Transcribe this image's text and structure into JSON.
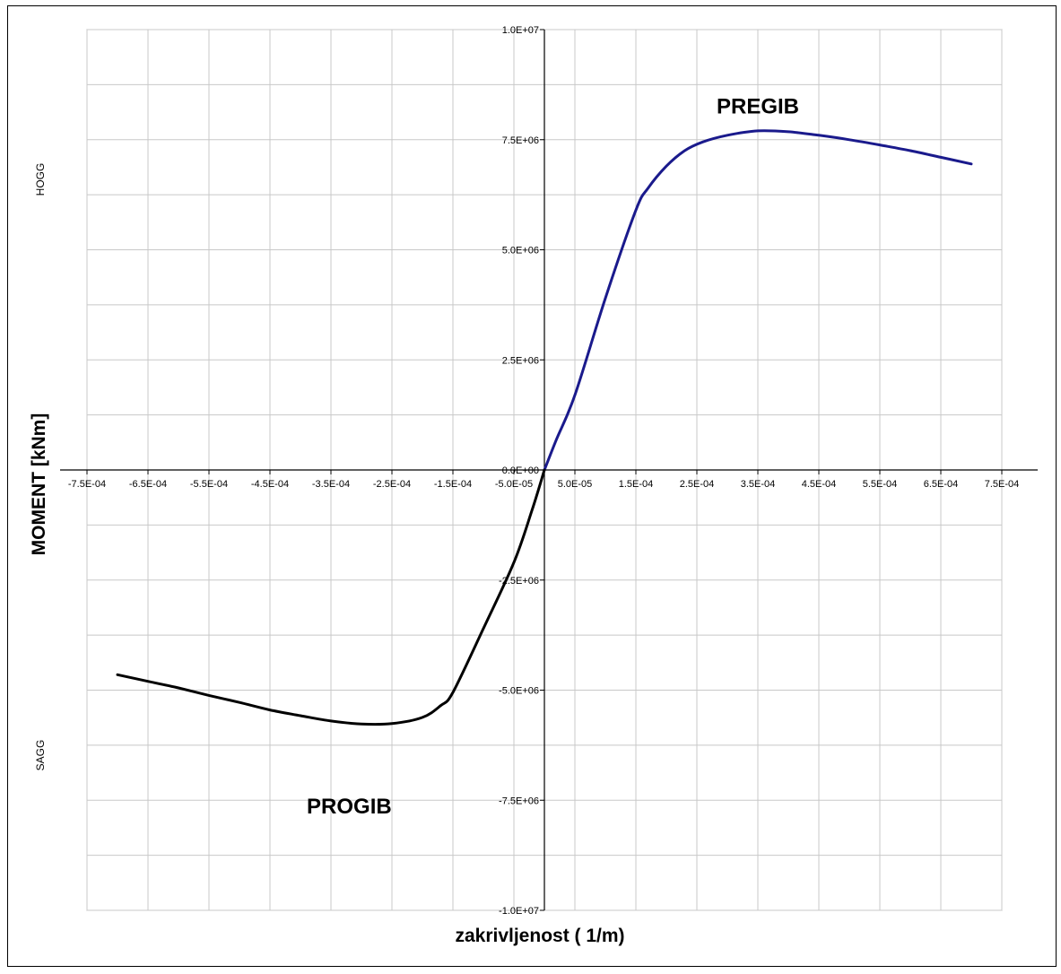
{
  "chart_data": {
    "type": "line",
    "xlabel": "zakrivljenost ( 1/m)",
    "ylabel": "MOMENT [kNm]",
    "side_labels": {
      "top": "HOGG",
      "bottom": "SAGG"
    },
    "annotations": [
      {
        "text": "PREGIB",
        "x": 0.00035,
        "y": 8100000
      },
      {
        "text": "PROGIB",
        "x": -0.00032,
        "y": -7800000
      }
    ],
    "xlim": [
      -0.00075,
      0.00075
    ],
    "ylim": [
      -10000000,
      10000000
    ],
    "x_ticks": [
      -0.00075,
      -0.00065,
      -0.00055,
      -0.00045,
      -0.00035,
      -0.00025,
      -0.00015,
      -5e-05,
      5e-05,
      0.00015,
      0.00025,
      0.00035,
      0.00045,
      0.00055,
      0.00065,
      0.00075
    ],
    "x_tick_labels": [
      "-7.5E-04",
      "-6.5E-04",
      "-5.5E-04",
      "-4.5E-04",
      "-3.5E-04",
      "-2.5E-04",
      "-1.5E-04",
      "-5.0E-05",
      "5.0E-05",
      "1.5E-04",
      "2.5E-04",
      "3.5E-04",
      "4.5E-04",
      "5.5E-04",
      "6.5E-04",
      "7.5E-04"
    ],
    "y_ticks": [
      10000000,
      7500000,
      5000000,
      2500000,
      0,
      -2500000,
      -5000000,
      -7500000,
      -10000000
    ],
    "y_tick_labels": [
      "1.0E+07",
      "7.5E+06",
      "5.0E+06",
      "2.5E+06",
      "0.0E+00",
      "-2.5E+06",
      "-5.0E+06",
      "-7.5E+06",
      "-1.0E+07"
    ],
    "grid": true,
    "series": [
      {
        "color": "#1a1a8c",
        "x": [
          0,
          2e-05,
          5e-05,
          0.0001,
          0.00015,
          0.00017,
          0.0002,
          0.00023,
          0.00026,
          0.0003,
          0.00035,
          0.0004,
          0.00045,
          0.0005,
          0.00055,
          0.0006,
          0.00065,
          0.0007
        ],
        "y": [
          0,
          700000,
          1700000,
          3900000,
          5900000,
          6400000,
          6900000,
          7250000,
          7450000,
          7600000,
          7700000,
          7680000,
          7600000,
          7500000,
          7380000,
          7250000,
          7100000,
          6950000
        ]
      },
      {
        "color": "#000000",
        "x": [
          0,
          -2e-05,
          -5e-05,
          -0.0001,
          -0.00015,
          -0.00017,
          -0.0002,
          -0.00025,
          -0.0003,
          -0.00035,
          -0.0004,
          -0.00045,
          -0.0005,
          -0.00055,
          -0.0006,
          -0.00065,
          -0.0007
        ],
        "y": [
          0,
          -900000,
          -2100000,
          -3600000,
          -5050000,
          -5350000,
          -5620000,
          -5760000,
          -5770000,
          -5700000,
          -5580000,
          -5450000,
          -5280000,
          -5120000,
          -4950000,
          -4800000,
          -4650000
        ]
      }
    ]
  }
}
